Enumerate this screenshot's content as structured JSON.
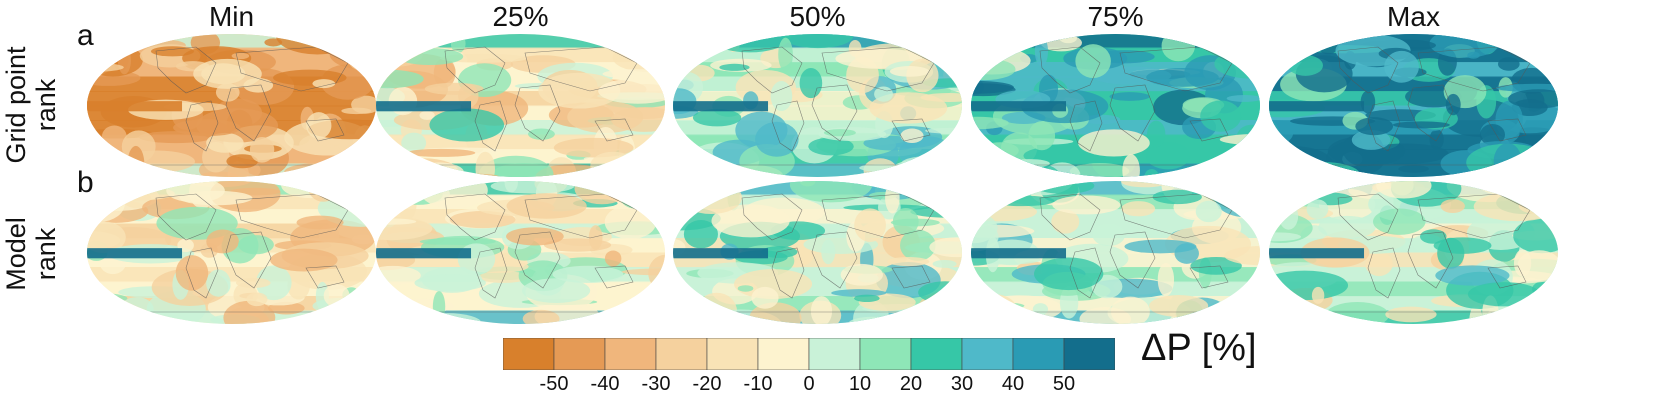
{
  "chart_data": {
    "type": "heatmap",
    "columns": [
      "Min",
      "25%",
      "50%",
      "75%",
      "Max"
    ],
    "rows": [
      {
        "panel": "a",
        "label": [
          "Grid point",
          "rank"
        ]
      },
      {
        "panel": "b",
        "label": [
          "Model",
          "rank"
        ]
      }
    ],
    "colorbar": {
      "title": "ΔP [%]",
      "boundaries": [
        -60,
        -50,
        -40,
        -30,
        -20,
        -10,
        0,
        10,
        20,
        30,
        40,
        50,
        60
      ],
      "colors": [
        "#d8802c",
        "#e59a55",
        "#f0b67c",
        "#f5d19e",
        "#f9e3b6",
        "#fdf3cf",
        "#c9f2d8",
        "#8ee6b7",
        "#36c7a7",
        "#4fb9c9",
        "#2a9bb4",
        "#136e8c"
      ],
      "tick_labels": [
        "-50",
        "-40",
        "-30",
        "-20",
        "-10",
        "0",
        "10",
        "20",
        "30",
        "40",
        "50"
      ]
    }
  }
}
